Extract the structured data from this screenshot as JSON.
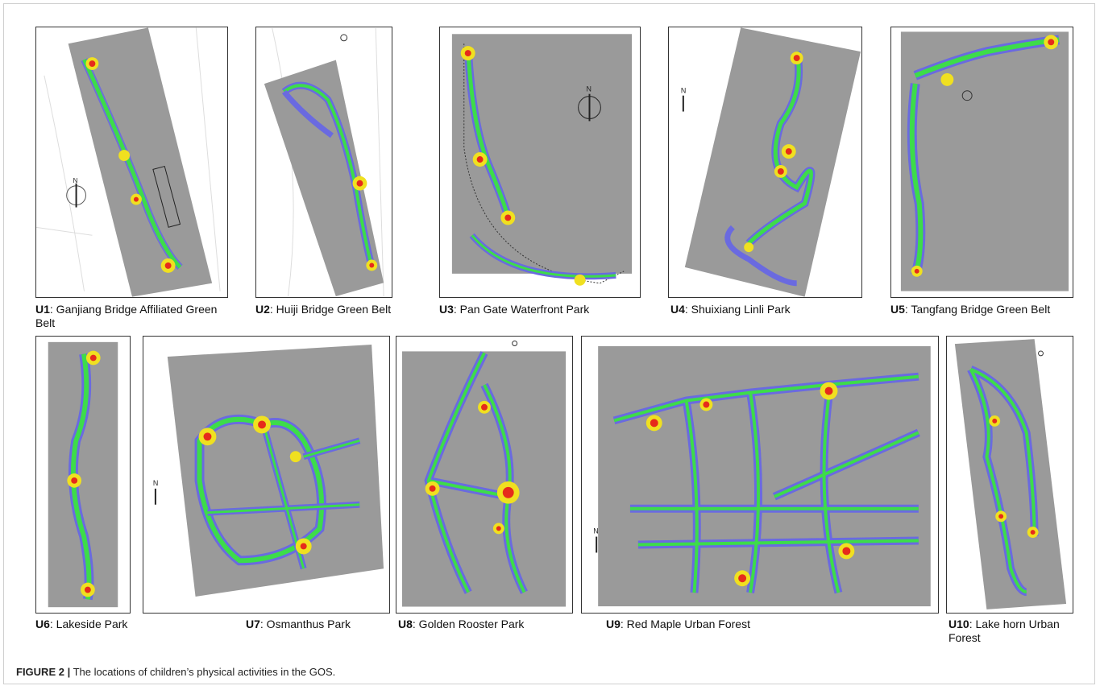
{
  "figure": {
    "label": "FIGURE 2 |",
    "caption": "The locations of children’s physical activities in the GOS."
  },
  "panels": [
    {
      "id": "U1",
      "title": ": Ganjiang Bridge Affiliated Green Belt"
    },
    {
      "id": "U2",
      "title": ": Huiji Bridge Green Belt"
    },
    {
      "id": "U3",
      "title": ": Pan Gate Waterfront Park"
    },
    {
      "id": "U4",
      "title": ": Shuixiang Linli Park"
    },
    {
      "id": "U5",
      "title": ": Tangfang Bridge Green Belt"
    },
    {
      "id": "U6",
      "title": ": Lakeside Park"
    },
    {
      "id": "U7",
      "title": ": Osmanthus Park"
    },
    {
      "id": "U8",
      "title": ": Golden Rooster Park"
    },
    {
      "id": "U9",
      "title": ": Red Maple Urban Forest"
    },
    {
      "id": "U10",
      "title": ": Lake horn Urban Forest"
    }
  ],
  "compass_label": "N",
  "colors": {
    "map_gray": "#9a9a9a",
    "heat_blue": "#5a5ae6",
    "heat_green": "#3ddc4a",
    "heat_yellow": "#f0e020",
    "heat_red": "#e62b1b"
  }
}
